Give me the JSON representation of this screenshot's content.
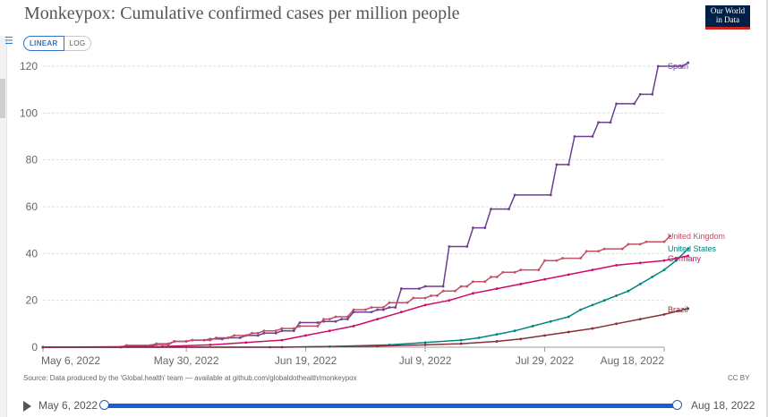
{
  "header": {
    "title": "Monkeypox: Cumulative confirmed cases per million people",
    "logo_line1": "Our World",
    "logo_line2": "in Data"
  },
  "controls": {
    "linear_label": "LINEAR",
    "log_label": "LOG",
    "active_scale": "linear"
  },
  "footer": {
    "source": "Source: Data produced by the 'Global.health' team — available at github.com/globaldothealth/monkeypox",
    "license": "CC BY"
  },
  "timeline": {
    "start_label": "May 6, 2022",
    "end_label": "Aug 18, 2022"
  },
  "chart_data": {
    "type": "line",
    "title": "Monkeypox: Cumulative confirmed cases per million people",
    "xlabel": "",
    "ylabel": "",
    "x_range_days": [
      0,
      104
    ],
    "x_ticks": [
      {
        "day": 0,
        "label": "May 6, 2022"
      },
      {
        "day": 24,
        "label": "May 30, 2022"
      },
      {
        "day": 44,
        "label": "Jun 19, 2022"
      },
      {
        "day": 64,
        "label": "Jul 9, 2022"
      },
      {
        "day": 84,
        "label": "Jul 29, 2022"
      },
      {
        "day": 104,
        "label": "Aug 18, 2022"
      }
    ],
    "ylim": [
      0,
      120
    ],
    "y_ticks": [
      0,
      20,
      40,
      60,
      80,
      100,
      120
    ],
    "grid": true,
    "scale": "linear",
    "series": [
      {
        "name": "Spain",
        "color": "#6d3e91",
        "points": [
          [
            0,
            0
          ],
          [
            13,
            0
          ],
          [
            14,
            0.4
          ],
          [
            18,
            0.4
          ],
          [
            19,
            1.2
          ],
          [
            21,
            1.2
          ],
          [
            22,
            2.5
          ],
          [
            24,
            2.5
          ],
          [
            25,
            3
          ],
          [
            27,
            3
          ],
          [
            28,
            3.5
          ],
          [
            30,
            3.5
          ],
          [
            31,
            4
          ],
          [
            33,
            4
          ],
          [
            34,
            5
          ],
          [
            36,
            5
          ],
          [
            37,
            6
          ],
          [
            39,
            6
          ],
          [
            40,
            7
          ],
          [
            42,
            7
          ],
          [
            43,
            10.5
          ],
          [
            46,
            10.5
          ],
          [
            47,
            11
          ],
          [
            49,
            11
          ],
          [
            50,
            12
          ],
          [
            51,
            12
          ],
          [
            52,
            15
          ],
          [
            55,
            15
          ],
          [
            56,
            16
          ],
          [
            57,
            16
          ],
          [
            58,
            17
          ],
          [
            59,
            17
          ],
          [
            60,
            25
          ],
          [
            63,
            25
          ],
          [
            64,
            26
          ],
          [
            67,
            26
          ],
          [
            68,
            43
          ],
          [
            71,
            43
          ],
          [
            72,
            51
          ],
          [
            74,
            51
          ],
          [
            75,
            59
          ],
          [
            78,
            59
          ],
          [
            79,
            65
          ],
          [
            85,
            65
          ],
          [
            86,
            78
          ],
          [
            88,
            78
          ],
          [
            89,
            90
          ],
          [
            92,
            90
          ],
          [
            93,
            96
          ],
          [
            95,
            96
          ],
          [
            96,
            104
          ],
          [
            99,
            104
          ],
          [
            100,
            108
          ],
          [
            102,
            108
          ],
          [
            103,
            120
          ],
          [
            107,
            120
          ],
          [
            108,
            121.5
          ]
        ]
      },
      {
        "name": "United Kingdom",
        "color": "#c15065",
        "points": [
          [
            0,
            0
          ],
          [
            13,
            0
          ],
          [
            14,
            0.8
          ],
          [
            18,
            0.8
          ],
          [
            19,
            1.5
          ],
          [
            21,
            1.5
          ],
          [
            22,
            2.5
          ],
          [
            24,
            2.5
          ],
          [
            25,
            3
          ],
          [
            28,
            3
          ],
          [
            29,
            4
          ],
          [
            31,
            4
          ],
          [
            32,
            5
          ],
          [
            34,
            5
          ],
          [
            35,
            6
          ],
          [
            36,
            6
          ],
          [
            37,
            7
          ],
          [
            39,
            7
          ],
          [
            40,
            8
          ],
          [
            42,
            8
          ],
          [
            43,
            9
          ],
          [
            46,
            9
          ],
          [
            47,
            12
          ],
          [
            48,
            12
          ],
          [
            49,
            13
          ],
          [
            51,
            13
          ],
          [
            52,
            16
          ],
          [
            54,
            16
          ],
          [
            55,
            17
          ],
          [
            57,
            17
          ],
          [
            58,
            19
          ],
          [
            61,
            19
          ],
          [
            62,
            21
          ],
          [
            64,
            21
          ],
          [
            65,
            22
          ],
          [
            66,
            22
          ],
          [
            67,
            24
          ],
          [
            69,
            24
          ],
          [
            70,
            26
          ],
          [
            71,
            26
          ],
          [
            72,
            28
          ],
          [
            74,
            28
          ],
          [
            75,
            30
          ],
          [
            76,
            30
          ],
          [
            77,
            32
          ],
          [
            79,
            32
          ],
          [
            80,
            33
          ],
          [
            83,
            33
          ],
          [
            84,
            37
          ],
          [
            86,
            37
          ],
          [
            87,
            38
          ],
          [
            90,
            38
          ],
          [
            91,
            41
          ],
          [
            93,
            41
          ],
          [
            94,
            42
          ],
          [
            97,
            42
          ],
          [
            98,
            44
          ],
          [
            100,
            44
          ],
          [
            101,
            45
          ],
          [
            104,
            45
          ],
          [
            105,
            47.5
          ]
        ]
      },
      {
        "name": "United States",
        "color": "#00847e",
        "points": [
          [
            0,
            0
          ],
          [
            38,
            0
          ],
          [
            48,
            0.3
          ],
          [
            58,
            1
          ],
          [
            64,
            2
          ],
          [
            70,
            3
          ],
          [
            73,
            4
          ],
          [
            76,
            5.5
          ],
          [
            79,
            7
          ],
          [
            82,
            9
          ],
          [
            85,
            11
          ],
          [
            88,
            13
          ],
          [
            90,
            16
          ],
          [
            92,
            18
          ],
          [
            94,
            20
          ],
          [
            96,
            22
          ],
          [
            98,
            24
          ],
          [
            100,
            27
          ],
          [
            102,
            30
          ],
          [
            104,
            33
          ],
          [
            106,
            37
          ],
          [
            108,
            42
          ]
        ]
      },
      {
        "name": "Germany",
        "color": "#cf0a66",
        "points": [
          [
            0,
            0
          ],
          [
            20,
            0.3
          ],
          [
            28,
            1
          ],
          [
            34,
            2
          ],
          [
            40,
            3
          ],
          [
            44,
            5
          ],
          [
            48,
            7
          ],
          [
            52,
            9
          ],
          [
            56,
            12
          ],
          [
            60,
            15
          ],
          [
            64,
            18
          ],
          [
            68,
            20
          ],
          [
            72,
            23
          ],
          [
            76,
            25
          ],
          [
            80,
            27
          ],
          [
            84,
            29
          ],
          [
            88,
            31
          ],
          [
            92,
            33
          ],
          [
            96,
            35
          ],
          [
            100,
            36
          ],
          [
            104,
            37
          ],
          [
            108,
            39
          ]
        ]
      },
      {
        "name": "Brazil",
        "color": "#883039",
        "points": [
          [
            0,
            0
          ],
          [
            40,
            0
          ],
          [
            56,
            0.5
          ],
          [
            64,
            1
          ],
          [
            70,
            1.5
          ],
          [
            76,
            2.5
          ],
          [
            80,
            3.5
          ],
          [
            84,
            5
          ],
          [
            88,
            6.5
          ],
          [
            92,
            8
          ],
          [
            96,
            10
          ],
          [
            100,
            12
          ],
          [
            104,
            14
          ],
          [
            108,
            16.5
          ]
        ]
      }
    ]
  }
}
